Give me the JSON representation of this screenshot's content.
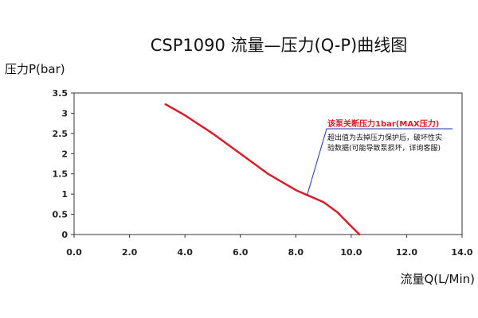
{
  "chart_data": {
    "type": "line",
    "title": "CSP1090 流量—压力(Q-P)曲线图",
    "xlabel": "流量Q(L/Min)",
    "ylabel": "压力P(bar)",
    "xlim": [
      0,
      14
    ],
    "ylim": [
      0,
      3.5
    ],
    "x_ticks": [
      0,
      2,
      4,
      6,
      8,
      10,
      12,
      14
    ],
    "x_tick_labels": [
      "0.0",
      "2.0",
      "4.0",
      "6.0",
      "8.0",
      "10.0",
      "12.0",
      "14.0"
    ],
    "y_ticks": [
      0,
      0.5,
      1,
      1.5,
      2,
      2.5,
      3,
      3.5
    ],
    "y_tick_labels": [
      "0",
      "0.5",
      "1",
      "1.5",
      "2",
      "2.5",
      "3",
      "3.5"
    ],
    "grid": false,
    "series": [
      {
        "color": "#d81e2a",
        "x": [
          3.3,
          4.0,
          5.0,
          6.0,
          7.0,
          7.5,
          8.0,
          8.5,
          9.0,
          9.5,
          10.0,
          10.3
        ],
        "y": [
          3.22,
          2.95,
          2.5,
          2.0,
          1.5,
          1.3,
          1.1,
          0.95,
          0.8,
          0.55,
          0.2,
          0.0
        ]
      }
    ],
    "annotation": {
      "point": [
        8.4,
        0.95
      ],
      "text_red": "该泵关断压力1bar(MAX压力)",
      "text_lines": [
        "超出值为去掉压力保护后，破坏性实",
        "验数据(可能导致泵损坏，详询客服)"
      ],
      "line_color": "#1f35a8"
    }
  }
}
